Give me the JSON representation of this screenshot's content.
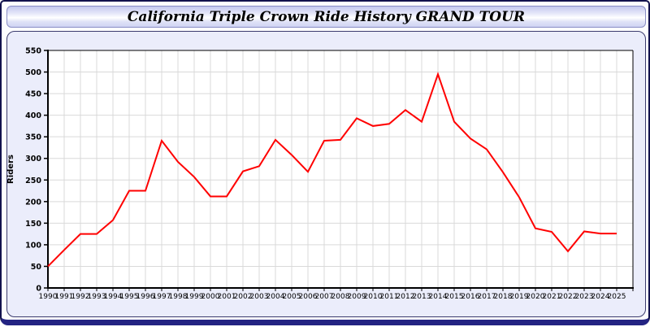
{
  "header": {
    "title": "California Triple Crown Ride History GRAND TOUR"
  },
  "colors": {
    "line": "#ff0000",
    "panel_background": "#ebedfb",
    "plot_background": "#ffffff",
    "gridline": "#d9d9d9",
    "axis": "#000000",
    "frame_border": "#12124e",
    "frame_bottom": "#232382",
    "header_gradient_top": "#c3c7ef",
    "header_gradient_mid": "#ffffff",
    "header_gradient_bottom": "#cfd3f3"
  },
  "chart_data": {
    "type": "line",
    "title": "California Triple Crown Ride History GRAND TOUR",
    "xlabel": "",
    "ylabel": "Riders",
    "ylim": [
      0,
      550
    ],
    "ytick_step": 50,
    "grid": true,
    "legend": "none",
    "line_color": "#ff0000",
    "x": [
      1990,
      1991,
      1992,
      1993,
      1994,
      1995,
      1996,
      1997,
      1998,
      1999,
      2000,
      2001,
      2002,
      2003,
      2004,
      2005,
      2006,
      2007,
      2008,
      2009,
      2010,
      2011,
      2012,
      2013,
      2014,
      2015,
      2016,
      2017,
      2018,
      2019,
      2020,
      2021,
      2022,
      2023,
      2024,
      2025
    ],
    "values": [
      50,
      88,
      125,
      125,
      157,
      225,
      225,
      341,
      292,
      257,
      212,
      212,
      270,
      282,
      343,
      308,
      269,
      341,
      343,
      393,
      375,
      380,
      412,
      385,
      495,
      385,
      346,
      321,
      268,
      210,
      138,
      130,
      85,
      131,
      126,
      126
    ]
  }
}
